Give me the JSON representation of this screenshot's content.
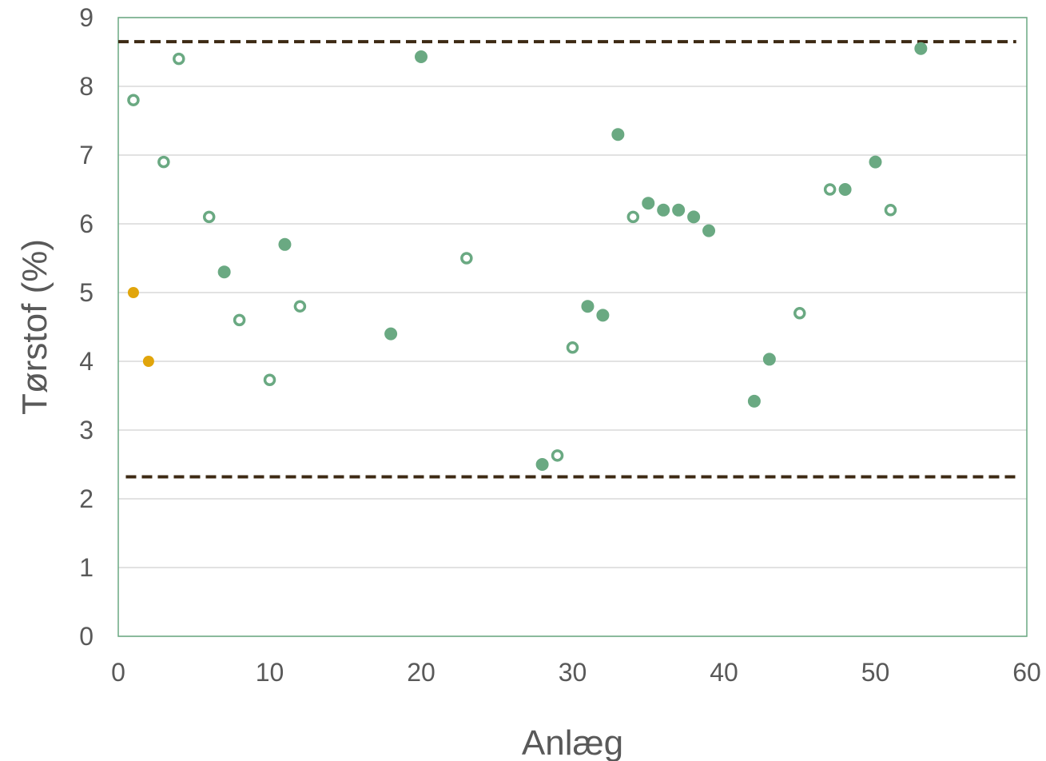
{
  "chart_data": {
    "type": "scatter",
    "title": "",
    "xlabel": "Anlæg",
    "ylabel": "Tørstof (%)",
    "xlim": [
      0,
      60
    ],
    "ylim": [
      0,
      9
    ],
    "xticks": [
      "0",
      "10",
      "20",
      "30",
      "40",
      "50",
      "60"
    ],
    "yticks": [
      "0",
      "1",
      "2",
      "3",
      "4",
      "5",
      "6",
      "7",
      "8",
      "9"
    ],
    "grid": "horizontal",
    "legend": "none",
    "reference_lines": [
      {
        "y": 8.65,
        "x_range": [
          0,
          59.3
        ],
        "style": "dashed",
        "color": "#3d2a14"
      },
      {
        "y": 2.32,
        "x_range": [
          0.5,
          59.6
        ],
        "style": "dashed",
        "color": "#3d2a14"
      }
    ],
    "colors": {
      "green": "#6aa982",
      "orange": "#e1a50b",
      "frame": "#6aa982",
      "grid": "#d9d9d9"
    },
    "series": [
      {
        "marker": "filled",
        "color": "#6aa982",
        "points": [
          [
            7,
            5.3
          ],
          [
            11,
            5.7
          ],
          [
            18,
            4.4
          ],
          [
            20,
            8.43
          ],
          [
            28,
            2.5
          ],
          [
            31,
            4.8
          ],
          [
            32,
            4.67
          ],
          [
            33,
            7.3
          ],
          [
            35,
            6.3
          ],
          [
            36,
            6.2
          ],
          [
            37,
            6.2
          ],
          [
            38,
            6.1
          ],
          [
            39,
            5.9
          ],
          [
            42,
            3.42
          ],
          [
            43,
            4.03
          ],
          [
            48,
            6.5
          ],
          [
            50,
            6.9
          ],
          [
            53,
            8.55
          ]
        ]
      },
      {
        "marker": "hollow",
        "color": "#6aa982",
        "points": [
          [
            1,
            7.8
          ],
          [
            3,
            6.9
          ],
          [
            4,
            8.4
          ],
          [
            6,
            6.1
          ],
          [
            8,
            4.6
          ],
          [
            10,
            3.73
          ],
          [
            12,
            4.8
          ],
          [
            23,
            5.5
          ],
          [
            29,
            2.63
          ],
          [
            30,
            4.2
          ],
          [
            34,
            6.1
          ],
          [
            45,
            4.7
          ],
          [
            47,
            6.5
          ],
          [
            51,
            6.2
          ]
        ]
      },
      {
        "marker": "filled-small",
        "color": "#e1a50b",
        "points": [
          [
            1,
            5.0
          ],
          [
            2,
            4.0
          ]
        ]
      }
    ]
  }
}
